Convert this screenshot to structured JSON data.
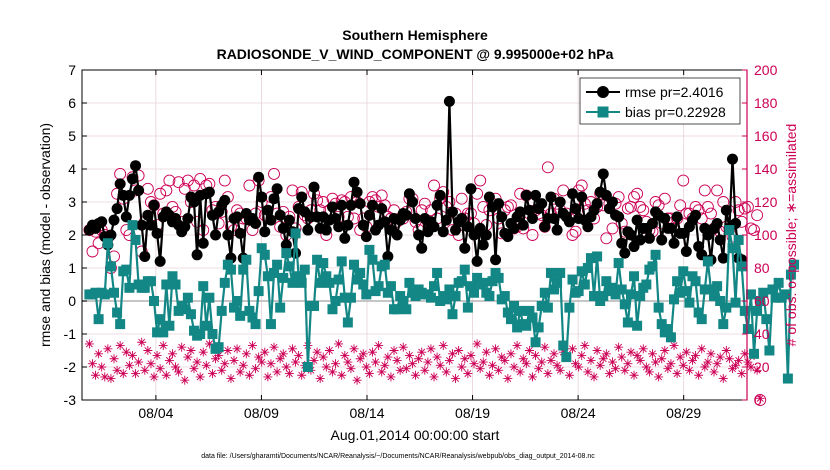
{
  "chart_data": {
    "type": "line",
    "title": "Southern Hemisphere",
    "subtitle": "RADIOSONDE_V_WIND_COMPONENT @ 9.995000e+02 hPa",
    "xlabel": "Aug.01,2014 00:00:00 start",
    "ylabel": "rmse and bias (model - observation)",
    "y2label": "# of obs: o=possible; ∗=assimilated",
    "footnote": "data file: /Users/gharamti/Documents/NCAR/Reanalysis/~/Documents/NCAR/Reanalysis/webpub/obs_diag_output_2014-08.nc",
    "xlim": [
      0,
      31.5
    ],
    "ylim": [
      -3,
      7
    ],
    "y2lim": [
      0,
      200
    ],
    "xticks": [
      {
        "label": "08/04",
        "value": 3.5
      },
      {
        "label": "08/09",
        "value": 8.5
      },
      {
        "label": "08/14",
        "value": 13.5
      },
      {
        "label": "08/19",
        "value": 18.5
      },
      {
        "label": "08/24",
        "value": 23.5
      },
      {
        "label": "08/29",
        "value": 28.5
      }
    ],
    "yticks": [
      "-3",
      "-2",
      "-1",
      "0",
      "1",
      "2",
      "3",
      "4",
      "5",
      "6",
      "7"
    ],
    "y2ticks": [
      "0",
      "20",
      "40",
      "60",
      "80",
      "100",
      "120",
      "140",
      "160",
      "180",
      "200"
    ],
    "legend_position": "top-right",
    "grid": true,
    "colors": {
      "rmse": "#000000",
      "bias": "#138785",
      "obs": "#cc0055",
      "zero_line": "#b4b4b4",
      "grid": "#e6d2d8"
    },
    "series": [
      {
        "name": "rmse pr=2.4016",
        "key": "rmse",
        "values": [
          2.15,
          2.3,
          2.2,
          2.35,
          2.4,
          1.95,
          1.7,
          2.0,
          2.45,
          2.8,
          3.55,
          3.2,
          2.55,
          3.2,
          3.7,
          4.1,
          3.35,
          2.3,
          1.35,
          2.6,
          2.3,
          2.9,
          2.05,
          1.2,
          2.55,
          2.7,
          2.6,
          2.4,
          2.5,
          2.3,
          2.1,
          2.25,
          2.5,
          3.15,
          3.0,
          1.4,
          3.2,
          1.75,
          3.25,
          3.3,
          2.6,
          2.0,
          2.7,
          2.9,
          3.05,
          2.0,
          1.3,
          2.5,
          2.55,
          2.05,
          1.3,
          2.65,
          2.45,
          2.5,
          2.35,
          3.75,
          3.15,
          2.1,
          2.75,
          2.45,
          3.1,
          3.4,
          2.6,
          2.2,
          1.7,
          2.45,
          2.1,
          1.45,
          2.8,
          3.15,
          2.7,
          2.15,
          2.55,
          3.45,
          2.55,
          2.2,
          2.55,
          2.15,
          2.45,
          2.85,
          2.5,
          2.25,
          2.9,
          1.9,
          2.3,
          2.9,
          3.6,
          3.3,
          2.95,
          2.3,
          1.95,
          2.6,
          2.9,
          2.15,
          2.3,
          2.8,
          2.4,
          1.35,
          2.15,
          2.5,
          2.0,
          2.45,
          2.65,
          2.6,
          3.25,
          3.0,
          2.5,
          2.0,
          1.6,
          2.5,
          2.1,
          2.4,
          2.25,
          2.9,
          3.2,
          2.1,
          2.45,
          6.05,
          2.7,
          2.15,
          2.4,
          2.5,
          1.6,
          2.25,
          3.4,
          2.0,
          1.2,
          2.2,
          1.7,
          2.0,
          3.15,
          2.85,
          1.25,
          2.95,
          2.55,
          2.05,
          1.95,
          2.35,
          2.2,
          2.55,
          2.7,
          2.3,
          3.2,
          2.75,
          2.5,
          3.2,
          2.8,
          2.95,
          2.25,
          2.5,
          3.15,
          2.5,
          2.15,
          3.0,
          2.65,
          2.55,
          2.4,
          3.25,
          2.8,
          2.5,
          3.15,
          2.45,
          2.25,
          2.55,
          2.75,
          2.95,
          3.3,
          3.85,
          3.2,
          2.8,
          3.0,
          2.6,
          2.55,
          1.75,
          1.45,
          2.1,
          2.0,
          1.65,
          2.45,
          1.85,
          2.2,
          2.2,
          1.9,
          2.35,
          2.7,
          2.6,
          1.85,
          2.5,
          2.2,
          2.2,
          1.75,
          2.55,
          2.05,
          2.05,
          1.5,
          2.25,
          2.45,
          2.6,
          1.65,
          1.4,
          2.2,
          2.0,
          1.25,
          2.2,
          2.35,
          1.85,
          1.3,
          2.75,
          2.2,
          4.3,
          2.35,
          1.3,
          1.25
        ]
      },
      {
        "name": "bias pr=0.22928",
        "key": "bias",
        "values": [
          0.2,
          0.2,
          0.25,
          -0.55,
          0.25,
          0.2,
          1.75,
          1.05,
          0.25,
          -0.35,
          -0.7,
          0.9,
          0.95,
          0.4,
          2.3,
          1.85,
          0.5,
          0.4,
          0.4,
          0.6,
          0.6,
          0.0,
          -0.95,
          -0.55,
          -0.95,
          0.5,
          -0.75,
          0.75,
          0.5,
          -0.3,
          -0.15,
          -0.25,
          0.1,
          -0.4,
          -0.9,
          -1.05,
          -1.0,
          0.45,
          -0.75,
          0.1,
          -1.0,
          -1.45,
          -1.4,
          -0.3,
          0.55,
          1.1,
          0.95,
          -0.2,
          0.0,
          -0.45,
          0.95,
          1.25,
          -0.3,
          -0.5,
          -0.7,
          0.3,
          1.6,
          1.4,
          0.75,
          -0.7,
          0.85,
          1.1,
          -0.2,
          0.7,
          1.45,
          1.05,
          0.55,
          2.05,
          0.75,
          0.55,
          0.95,
          -2.0,
          -0.15,
          -0.15,
          1.25,
          0.55,
          1.15,
          0.75,
          0.55,
          -0.25,
          0.0,
          0.65,
          1.2,
          0.1,
          -0.65,
          0.1,
          1.1,
          0.65,
          0.85,
          0.5,
          0.2,
          1.55,
          1.25,
          0.3,
          0.45,
          1.05,
          1.1,
          0.25,
          0.45,
          -0.25,
          -0.25,
          0.15,
          0.0,
          -0.25,
          0.55,
          0.25,
          0.15,
          0.35,
          0.25,
          0.2,
          0.2,
          0.1,
          0.45,
          0.85,
          0.0,
          0.15,
          0.05,
          0.35,
          -0.4,
          0.15,
          0.55,
          0.6,
          0.95,
          -0.2,
          0.45,
          0.25,
          0.7,
          0.5,
          0.55,
          0.25,
          0.15,
          0.6,
          0.85,
          0.7,
          0.05,
          0.15,
          -0.35,
          -0.55,
          -0.15,
          -0.8,
          -0.3,
          -0.7,
          -0.75,
          -0.3,
          -0.5,
          -1.25,
          -0.8,
          -0.15,
          0.25,
          -0.2,
          0.85,
          0.35,
          0.55,
          0.85,
          -1.35,
          -1.7,
          -0.2,
          0.65,
          0.25,
          0.3,
          0.9,
          0.5,
          1.0,
          1.3,
          0.15,
          1.35,
          0.0,
          0.15,
          0.6,
          0.3,
          0.4,
          0.2,
          1.15,
          0.35,
          -0.1,
          -0.65,
          0.2,
          0.75,
          -0.75,
          0.15,
          0.4,
          0.5,
          0.95,
          1.05,
          1.4,
          -0.2,
          -0.7,
          -0.95,
          -0.85,
          -1.1,
          0.05,
          0.6,
          0.25,
          0.9,
          0.3,
          -0.05,
          0.75,
          0.6,
          -0.35,
          -0.55,
          0.35,
          1.2,
          0.35,
          0.15,
          0.45,
          0.0,
          -0.7,
          -0.2,
          2.15,
          1.6,
          -0.05,
          1.85,
          1.05,
          -0.3,
          -0.85,
          0.2,
          -1.6,
          -0.3,
          0.0,
          0.25,
          -0.55,
          -1.5,
          0.35,
          0.1,
          0.55,
          0.1,
          0.2,
          -2.35,
          0.8,
          1.1
        ]
      }
    ],
    "obs_possible": [
      103,
      90,
      102,
      95,
      103,
      100,
      98,
      80,
      87,
      125,
      137,
      122,
      103,
      100,
      135,
      127,
      136,
      90,
      108,
      128,
      120,
      118,
      106,
      125,
      113,
      127,
      133,
      117,
      114,
      132,
      108,
      128,
      133,
      120,
      130,
      108,
      134,
      103,
      130,
      131,
      115,
      117,
      107,
      114,
      133,
      123,
      105,
      103,
      115,
      113,
      110,
      110,
      130,
      103,
      113,
      133,
      120,
      112,
      110,
      123,
      137,
      113,
      105,
      114,
      100,
      111,
      127,
      104,
      117,
      126,
      112,
      110,
      115,
      125,
      121,
      115,
      120,
      100,
      115,
      122,
      119,
      111,
      121,
      120,
      111,
      123,
      110,
      120,
      103,
      110,
      105,
      120,
      123,
      121,
      117,
      124,
      118,
      111,
      110,
      115,
      108,
      110,
      110,
      114,
      122,
      122,
      108,
      103,
      115,
      119,
      108,
      115,
      130,
      110,
      122,
      126,
      117,
      120,
      103,
      113,
      100,
      122,
      110,
      113,
      113,
      107,
      125,
      133,
      117,
      106,
      115,
      119,
      122,
      110,
      101,
      115,
      117,
      118,
      104,
      105,
      125,
      104,
      124,
      113,
      100,
      115,
      113,
      112,
      105,
      141,
      113,
      122,
      119,
      115,
      127,
      113,
      110,
      100,
      102,
      127,
      130,
      119,
      115,
      120,
      110,
      117,
      125,
      118,
      98,
      119,
      104,
      119,
      123,
      107,
      102,
      116,
      117,
      123,
      125,
      117,
      115,
      108,
      103,
      102,
      120,
      118,
      107,
      122,
      110,
      110,
      108,
      110,
      118,
      133,
      113,
      113,
      110,
      117,
      115,
      110,
      127,
      117,
      113,
      104,
      127,
      102,
      120,
      105,
      104,
      99,
      120,
      115,
      108,
      116,
      117,
      104,
      103,
      112,
      0
    ],
    "obs_assimilated": [
      34,
      22,
      15,
      28,
      20,
      14,
      31,
      13,
      25,
      18,
      33,
      16,
      29,
      21,
      27,
      16,
      23,
      35,
      18,
      30,
      22,
      14,
      27,
      19,
      33,
      15,
      24,
      28,
      20,
      17,
      32,
      12,
      26,
      30,
      19,
      23,
      14,
      29,
      21,
      34,
      16,
      25,
      27,
      18,
      22,
      30,
      13,
      24,
      31,
      17,
      21,
      28,
      15,
      33,
      19,
      26,
      23,
      29,
      14,
      22,
      32,
      17,
      25,
      28,
      20,
      16,
      31,
      23,
      27,
      15,
      21,
      33,
      18,
      24,
      29,
      13,
      26,
      20,
      30,
      17,
      22,
      34,
      15,
      27,
      23,
      19,
      31,
      12,
      25,
      28,
      20,
      16,
      29,
      23,
      33,
      17,
      21,
      26,
      14,
      30,
      24,
      18,
      32,
      19,
      27,
      22,
      15,
      25,
      29,
      18,
      23,
      31,
      14,
      26,
      21,
      33,
      17,
      24,
      28,
      13,
      30,
      20,
      25,
      16,
      27,
      22,
      34,
      19,
      23,
      29,
      15,
      21,
      31,
      18,
      26,
      24,
      13,
      28,
      20,
      33,
      17,
      25,
      22,
      30,
      14,
      27,
      19,
      23,
      32,
      16,
      24,
      28,
      21,
      18,
      29,
      26,
      15,
      31,
      22,
      20,
      27,
      33,
      17,
      24,
      14,
      30,
      21,
      25,
      28,
      16,
      23,
      19,
      32,
      26,
      18,
      22,
      29,
      15,
      27,
      24,
      31,
      20,
      17,
      28,
      23,
      14,
      25,
      30,
      19,
      22,
      33,
      16,
      26,
      21,
      29,
      18,
      24,
      27,
      15,
      31,
      20,
      23,
      28,
      17,
      22,
      26,
      13,
      30,
      25,
      19,
      21,
      24,
      16,
      28,
      23,
      20,
      27,
      18,
      1
    ]
  }
}
